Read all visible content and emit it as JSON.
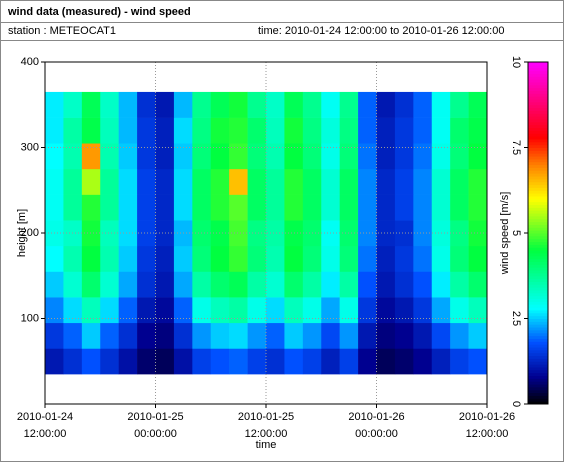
{
  "header": {
    "title": "wind data (measured) - wind speed",
    "station": "station : METEOCAT1",
    "time_range": "time: 2010-01-24 12:00:00 to 2010-01-26 12:00:00"
  },
  "chart_data": {
    "type": "heatmap",
    "xlabel": "time",
    "ylabel": "height [m]",
    "colorbar_label": "wind speed [m/s]",
    "x": [
      "2010-01-24 12:00:00",
      "2010-01-24 14:00:00",
      "2010-01-24 16:00:00",
      "2010-01-24 18:00:00",
      "2010-01-24 20:00:00",
      "2010-01-24 22:00:00",
      "2010-01-25 00:00:00",
      "2010-01-25 02:00:00",
      "2010-01-25 04:00:00",
      "2010-01-25 06:00:00",
      "2010-01-25 08:00:00",
      "2010-01-25 10:00:00",
      "2010-01-25 12:00:00",
      "2010-01-25 14:00:00",
      "2010-01-25 16:00:00",
      "2010-01-25 18:00:00",
      "2010-01-25 20:00:00",
      "2010-01-25 22:00:00",
      "2010-01-26 00:00:00",
      "2010-01-26 02:00:00",
      "2010-01-26 04:00:00",
      "2010-01-26 06:00:00",
      "2010-01-26 08:00:00",
      "2010-01-26 10:00:00"
    ],
    "y": [
      50,
      80,
      110,
      140,
      170,
      200,
      230,
      260,
      290,
      320,
      350
    ],
    "values": [
      [
        1.1,
        1.4,
        1.8,
        1.4,
        1.0,
        0.6,
        0.5,
        1.0,
        1.6,
        1.8,
        1.9,
        1.6,
        1.4,
        1.8,
        1.6,
        1.2,
        1.6,
        0.8,
        0.5,
        0.6,
        0.8,
        1.2,
        1.6,
        1.8
      ],
      [
        1.5,
        1.9,
        2.5,
        1.9,
        1.4,
        0.8,
        0.7,
        1.4,
        2.2,
        2.5,
        2.6,
        2.2,
        1.9,
        2.5,
        2.2,
        1.7,
        2.2,
        1.1,
        0.7,
        0.8,
        1.1,
        1.7,
        2.2,
        2.5
      ],
      [
        2.1,
        2.6,
        3.4,
        2.6,
        1.9,
        1.1,
        0.9,
        1.9,
        3.0,
        3.4,
        3.6,
        3.0,
        2.6,
        3.4,
        3.0,
        2.3,
        3.0,
        1.5,
        0.9,
        1.1,
        1.5,
        2.3,
        3.0,
        3.4
      ],
      [
        2.5,
        3.2,
        4.1,
        3.2,
        2.3,
        1.4,
        1.1,
        2.3,
        3.6,
        4.1,
        4.3,
        3.6,
        3.2,
        4.1,
        3.6,
        2.7,
        3.6,
        1.8,
        1.1,
        1.4,
        1.8,
        2.7,
        3.6,
        4.1
      ],
      [
        2.8,
        3.5,
        4.5,
        3.5,
        2.5,
        1.5,
        1.2,
        2.5,
        4.0,
        4.5,
        4.8,
        4.0,
        3.5,
        4.5,
        4.0,
        3.0,
        4.0,
        2.0,
        1.2,
        1.5,
        2.0,
        3.0,
        4.0,
        4.5
      ],
      [
        3.0,
        3.3,
        4.6,
        3.4,
        2.6,
        1.6,
        1.3,
        2.4,
        4.1,
        4.4,
        4.9,
        3.9,
        3.6,
        4.4,
        4.1,
        2.9,
        4.1,
        2.1,
        1.3,
        1.4,
        2.1,
        3.1,
        3.9,
        4.6
      ],
      [
        2.9,
        3.7,
        4.7,
        3.7,
        2.6,
        1.6,
        1.3,
        2.6,
        4.2,
        4.7,
        5.0,
        4.2,
        3.7,
        4.7,
        4.2,
        3.2,
        4.2,
        2.1,
        1.3,
        1.6,
        2.1,
        3.2,
        4.2,
        4.7
      ],
      [
        2.9,
        3.7,
        5.5,
        3.7,
        2.6,
        1.6,
        1.3,
        2.6,
        4.2,
        4.7,
        6.5,
        4.2,
        3.7,
        4.7,
        4.2,
        3.2,
        4.2,
        2.1,
        1.3,
        1.6,
        2.1,
        3.2,
        4.2,
        4.7
      ],
      [
        2.8,
        3.5,
        6.8,
        3.5,
        2.5,
        1.5,
        1.2,
        2.5,
        4.0,
        4.5,
        4.8,
        4.0,
        3.5,
        4.5,
        4.0,
        3.0,
        4.0,
        2.0,
        1.2,
        1.5,
        2.0,
        3.0,
        4.0,
        4.5
      ],
      [
        2.7,
        3.6,
        4.4,
        3.4,
        2.4,
        1.5,
        1.2,
        2.6,
        3.9,
        4.6,
        4.7,
        4.1,
        3.4,
        4.6,
        3.9,
        3.1,
        3.9,
        1.9,
        1.2,
        1.5,
        1.9,
        2.9,
        4.1,
        4.4
      ],
      [
        2.7,
        3.3,
        4.3,
        3.3,
        2.4,
        1.4,
        1.1,
        2.4,
        3.8,
        4.3,
        4.6,
        3.8,
        3.3,
        4.3,
        3.8,
        2.9,
        3.8,
        1.9,
        1.1,
        1.4,
        1.9,
        2.9,
        3.8,
        4.3
      ]
    ],
    "xlim": [
      "2010-01-24 12:00:00",
      "2010-01-26 12:00:00"
    ],
    "xticks": [
      {
        "value": "2010-01-24 12:00:00",
        "label": [
          "2010-01-24",
          "12:00:00"
        ]
      },
      {
        "value": "2010-01-25 00:00:00",
        "label": [
          "2010-01-25",
          "00:00:00"
        ]
      },
      {
        "value": "2010-01-25 12:00:00",
        "label": [
          "2010-01-25",
          "12:00:00"
        ]
      },
      {
        "value": "2010-01-26 00:00:00",
        "label": [
          "2010-01-26",
          "00:00:00"
        ]
      },
      {
        "value": "2010-01-26 12:00:00",
        "label": [
          "2010-01-26",
          "12:00:00"
        ]
      }
    ],
    "ylim": [
      0,
      400
    ],
    "yticks": [
      100,
      200,
      300,
      400
    ],
    "clim": [
      0,
      10
    ],
    "cticks": [
      0,
      2.5,
      5,
      7.5,
      10
    ],
    "colorscale": [
      [
        0,
        "#000000"
      ],
      [
        0.8,
        "#000090"
      ],
      [
        1.8,
        "#0050ff"
      ],
      [
        2.8,
        "#00ffff"
      ],
      [
        4.5,
        "#00ff40"
      ],
      [
        6,
        "#ffff00"
      ],
      [
        7,
        "#ff8000"
      ],
      [
        7.8,
        "#ff0000"
      ],
      [
        10,
        "#ff00ff"
      ]
    ],
    "grid": true
  }
}
